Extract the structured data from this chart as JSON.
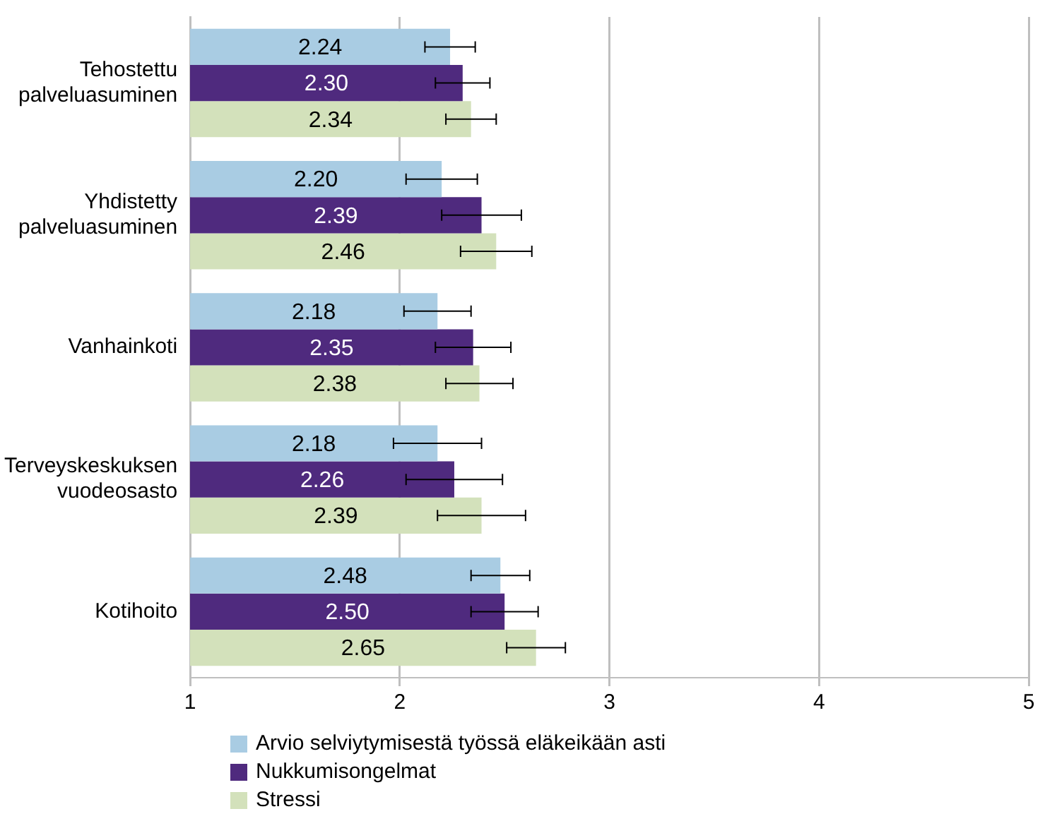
{
  "chart_data": {
    "type": "bar",
    "orientation": "horizontal",
    "categories": [
      "Tehostettu palveluasuminen",
      "Yhdistetty palveluasuminen",
      "Vanhainkoti",
      "Terveyskeskuksen vuodeosasto",
      "Kotihoito"
    ],
    "series": [
      {
        "name": "Arvio selviytymisestä työssä eläkeikään asti",
        "color": "#a9cce3",
        "values": [
          2.24,
          2.2,
          2.18,
          2.18,
          2.48
        ],
        "value_labels": [
          "2.24",
          "2.20",
          "2.18",
          "2.18",
          "2.48"
        ],
        "errors": [
          0.12,
          0.17,
          0.16,
          0.21,
          0.14
        ]
      },
      {
        "name": "Nukkumisongelmat",
        "color": "#4f2a7e",
        "values": [
          2.3,
          2.39,
          2.35,
          2.26,
          2.5
        ],
        "value_labels": [
          "2.30",
          "2.39",
          "2.35",
          "2.26",
          "2.50"
        ],
        "errors": [
          0.13,
          0.19,
          0.18,
          0.23,
          0.16
        ]
      },
      {
        "name": "Stressi",
        "color": "#d3e1bb",
        "values": [
          2.34,
          2.46,
          2.38,
          2.39,
          2.65
        ],
        "value_labels": [
          "2.34",
          "2.46",
          "2.38",
          "2.39",
          "2.65"
        ],
        "errors": [
          0.12,
          0.17,
          0.16,
          0.21,
          0.14
        ]
      }
    ],
    "xlim": [
      1,
      5
    ],
    "xticks": [
      1,
      2,
      3,
      4,
      5
    ],
    "grid": "x",
    "legend": "bottom"
  }
}
